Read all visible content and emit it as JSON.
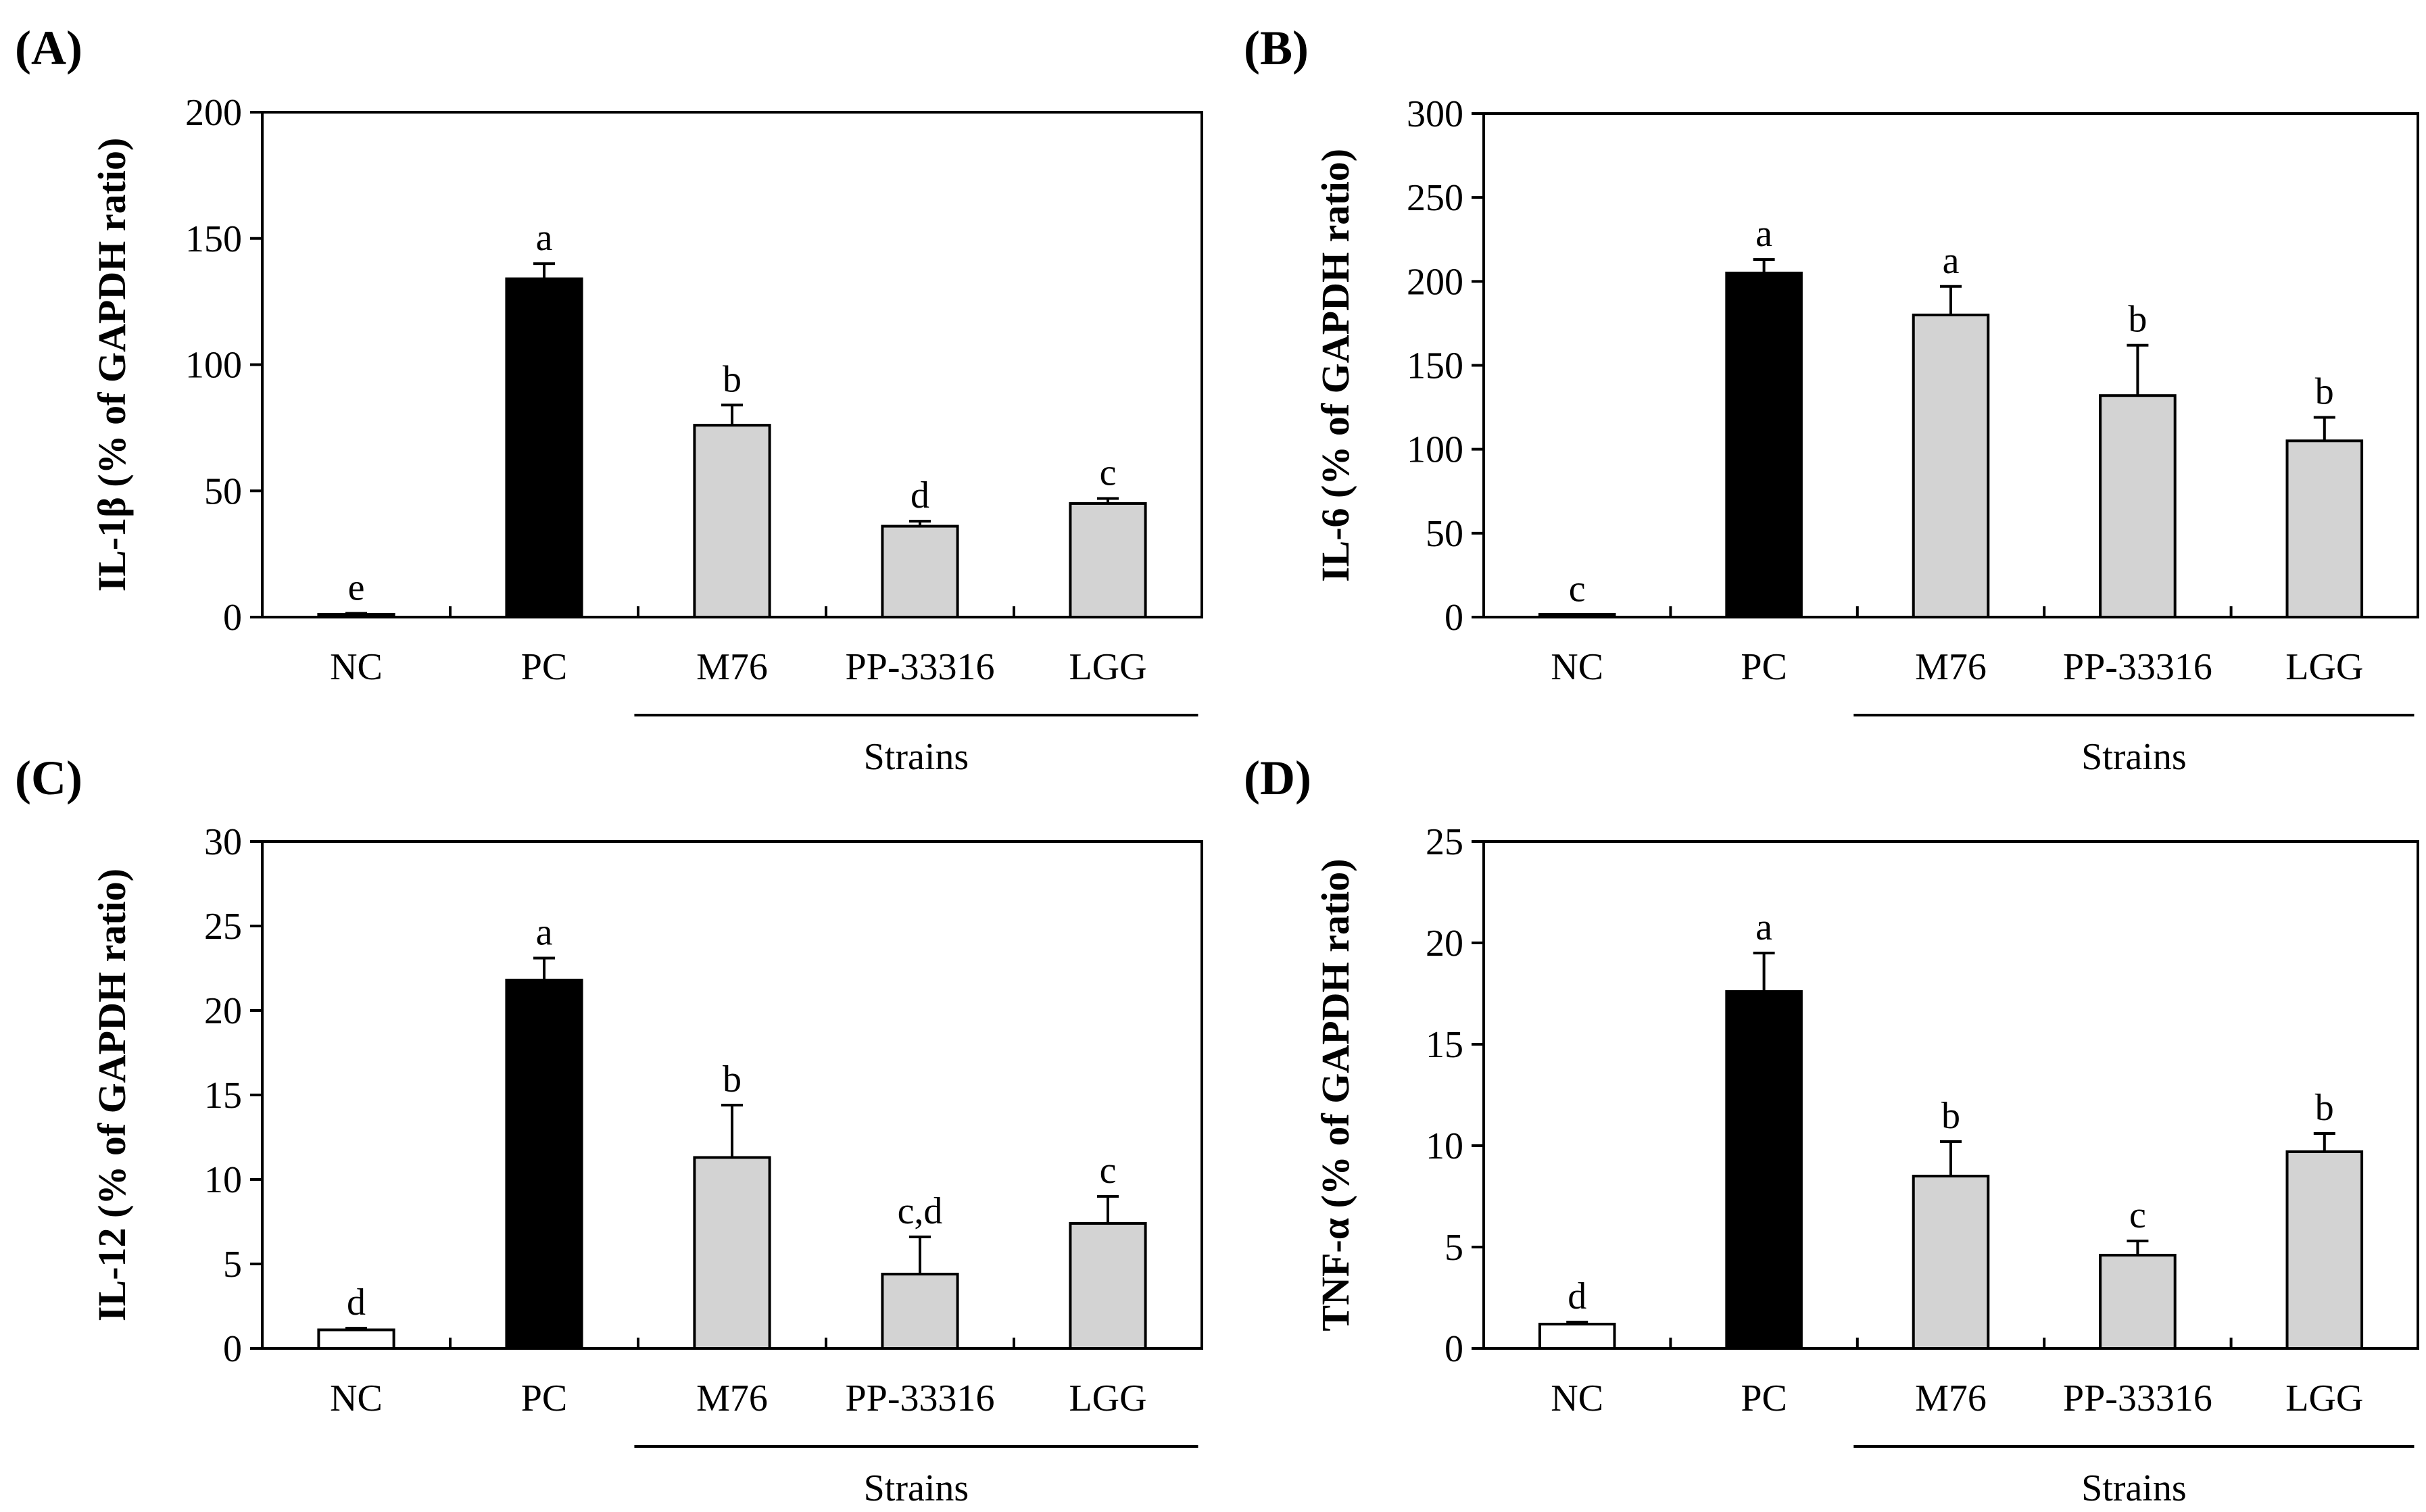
{
  "chart_data": [
    {
      "type": "bar",
      "panel": "(A)",
      "ylabel": "IL-1β (% of GAPDH ratio)",
      "ylim": [
        0,
        200
      ],
      "yticks": [
        0,
        50,
        100,
        150,
        200
      ],
      "categories": [
        "NC",
        "PC",
        "M76",
        "PP-33316",
        "LGG"
      ],
      "values": [
        1,
        134,
        76,
        36,
        45
      ],
      "errors": [
        0.5,
        6,
        8,
        2,
        2
      ],
      "significance": [
        "e",
        "a",
        "b",
        "d",
        "c"
      ],
      "bar_colors": [
        "#ffffff",
        "#000000",
        "#d3d3d3",
        "#d3d3d3",
        "#d3d3d3"
      ],
      "group_label": "Strains",
      "group_categories": [
        "M76",
        "PP-33316",
        "LGG"
      ]
    },
    {
      "type": "bar",
      "panel": "(B)",
      "ylabel": "IL-6 (% of GAPDH ratio)",
      "ylim": [
        0,
        300
      ],
      "yticks": [
        0,
        50,
        100,
        150,
        200,
        250,
        300
      ],
      "categories": [
        "NC",
        "PC",
        "M76",
        "PP-33316",
        "LGG"
      ],
      "values": [
        1,
        205,
        180,
        132,
        105
      ],
      "errors": [
        0.5,
        8,
        17,
        30,
        14
      ],
      "significance": [
        "c",
        "a",
        "a",
        "b",
        "b"
      ],
      "bar_colors": [
        "#ffffff",
        "#000000",
        "#d3d3d3",
        "#d3d3d3",
        "#d3d3d3"
      ],
      "group_label": "Strains",
      "group_categories": [
        "M76",
        "PP-33316",
        "LGG"
      ]
    },
    {
      "type": "bar",
      "panel": "(C)",
      "ylabel": "IL-12 (% of GAPDH ratio)",
      "ylim": [
        0,
        30
      ],
      "yticks": [
        0,
        5,
        10,
        15,
        20,
        25,
        30
      ],
      "categories": [
        "NC",
        "PC",
        "M76",
        "PP-33316",
        "LGG"
      ],
      "values": [
        1.1,
        21.8,
        11.3,
        4.4,
        7.4
      ],
      "errors": [
        0.1,
        1.3,
        3.1,
        2.2,
        1.6
      ],
      "significance": [
        "d",
        "a",
        "b",
        "c,d",
        "c"
      ],
      "bar_colors": [
        "#ffffff",
        "#000000",
        "#d3d3d3",
        "#d3d3d3",
        "#d3d3d3"
      ],
      "group_label": "Strains",
      "group_categories": [
        "M76",
        "PP-33316",
        "LGG"
      ]
    },
    {
      "type": "bar",
      "panel": "(D)",
      "ylabel": "TNF-α (% of GAPDH ratio)",
      "ylim": [
        0,
        25
      ],
      "yticks": [
        0,
        5,
        10,
        15,
        20,
        25
      ],
      "categories": [
        "NC",
        "PC",
        "M76",
        "PP-33316",
        "LGG"
      ],
      "values": [
        1.2,
        17.6,
        8.5,
        4.6,
        9.7
      ],
      "errors": [
        0.1,
        1.9,
        1.7,
        0.7,
        0.9
      ],
      "significance": [
        "d",
        "a",
        "b",
        "c",
        "b"
      ],
      "bar_colors": [
        "#ffffff",
        "#000000",
        "#d3d3d3",
        "#d3d3d3",
        "#d3d3d3"
      ],
      "group_label": "Strains",
      "group_categories": [
        "M76",
        "PP-33316",
        "LGG"
      ]
    }
  ]
}
